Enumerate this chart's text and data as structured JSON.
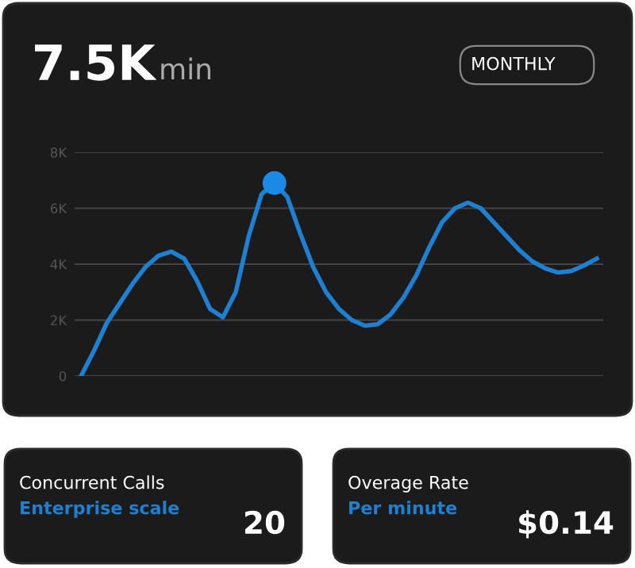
{
  "chart_data": [
    {
      "type": "line",
      "title": "7.5K",
      "subtitle": "min",
      "annotations": [
        "MONTHLY"
      ],
      "categories": [
        null,
        null,
        null,
        null,
        null,
        null,
        null,
        null,
        null,
        null,
        null,
        null,
        null,
        null,
        null,
        null,
        null,
        null,
        null,
        null,
        null,
        null,
        null,
        null,
        null,
        null,
        null,
        null,
        null,
        null,
        null,
        null,
        null,
        null,
        null,
        null,
        null,
        null,
        null,
        null,
        null
      ],
      "series": [
        {
          "color": "#1f7fd0",
          "values": [
            0,
            900,
            1900,
            2600,
            3300,
            3900,
            4300,
            4450,
            4200,
            3400,
            2400,
            2100,
            3000,
            5000,
            6500,
            6900,
            6400,
            5100,
            3900,
            3000,
            2400,
            2000,
            1800,
            1850,
            2200,
            2800,
            3600,
            4600,
            5500,
            6000,
            6200,
            6000,
            5500,
            5000,
            4500,
            4100,
            3850,
            3700,
            3750,
            3950,
            4200
          ]
        },
        {
          "type": "scatter",
          "color": "#1a8ae6",
          "marker": "circle",
          "values": [
            null,
            null,
            null,
            null,
            null,
            null,
            null,
            null,
            null,
            null,
            null,
            null,
            null,
            null,
            null,
            6900,
            null,
            null,
            null,
            null,
            null,
            null,
            null,
            null,
            null,
            null,
            null,
            null,
            null,
            null,
            null,
            null,
            null,
            null,
            null,
            null,
            null,
            null,
            null,
            null,
            null
          ]
        }
      ],
      "ylim": [
        0,
        8000
      ],
      "yticks": [
        0,
        {
          "value": 2000,
          "label": "2K"
        },
        {
          "value": 4000,
          "label": "4K"
        },
        {
          "value": 6000,
          "label": "6K"
        },
        {
          "value": 8000,
          "label": "8K"
        }
      ],
      "grid": "y",
      "tick_labels": "y",
      "marker": "none",
      "line_style": "solid"
    },
    {
      "type": "other",
      "title": "Concurrent Calls",
      "subtitle": "Enterprise scale",
      "annotations": [
        "20"
      ]
    },
    {
      "type": "other",
      "title": "Overage Rate",
      "subtitle": "Per minute",
      "annotations": [
        "$0.14"
      ]
    }
  ]
}
